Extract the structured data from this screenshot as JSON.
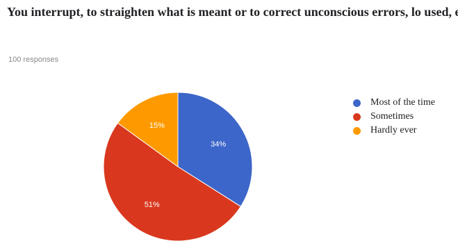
{
  "question": {
    "title": "You interrupt, to straighten what is meant or to correct unconscious errors, lo used, etc.",
    "response_count": "100 responses"
  },
  "colors": {
    "most_of_the_time": "#3c66c9",
    "sometimes": "#d9381e",
    "hardly_ever": "#fe9a00"
  },
  "chart_data": {
    "type": "pie",
    "title": "",
    "categories": [
      "Most of the time",
      "Sometimes",
      "Hardly ever"
    ],
    "values": [
      34,
      51,
      15
    ],
    "labels": [
      "34%",
      "51%",
      "15%"
    ],
    "colors": [
      "#3c66c9",
      "#d9381e",
      "#fe9a00"
    ],
    "legend_position": "right",
    "start_angle": 90,
    "direction": "clockwise"
  },
  "legend": {
    "items": [
      {
        "label": "Most of the time",
        "color": "#3c66c9"
      },
      {
        "label": "Sometimes",
        "color": "#d9381e"
      },
      {
        "label": "Hardly ever",
        "color": "#fe9a00"
      }
    ]
  }
}
